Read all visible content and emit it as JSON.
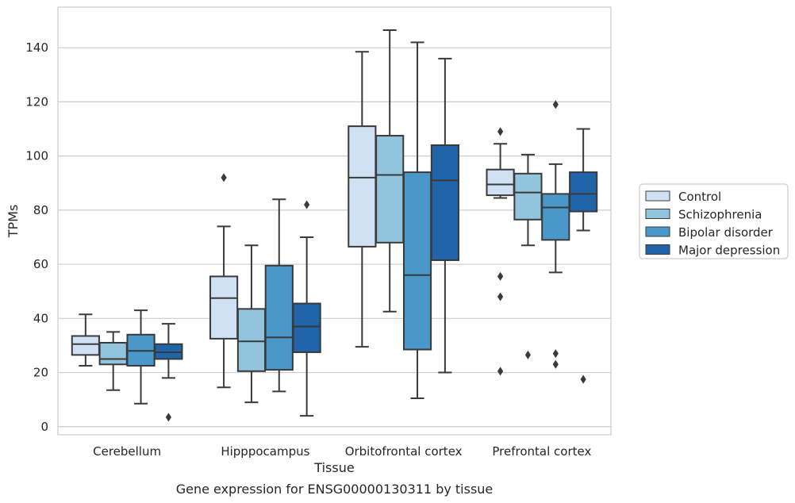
{
  "chart_data": {
    "type": "box",
    "xlabel": "Tissue",
    "ylabel": "TPMs",
    "caption": "Gene expression for ENSG00000130311 by tissue",
    "ylim": [
      -3,
      155
    ],
    "yticks": [
      0,
      20,
      40,
      60,
      80,
      100,
      120,
      140
    ],
    "grid": "horizontal",
    "legend_position": "right",
    "categories": [
      "Cerebellum",
      "Hipppocampus",
      "Orbitofrontal cortex",
      "Prefrontal cortex"
    ],
    "series": [
      {
        "name": "Control",
        "color": "#cfe1f2",
        "boxes": [
          {
            "whislo": 22.5,
            "q1": 26.5,
            "med": 30.5,
            "q3": 33.5,
            "whishi": 41.5,
            "fliers": []
          },
          {
            "whislo": 14.5,
            "q1": 32.5,
            "med": 47.5,
            "q3": 55.5,
            "whishi": 74.0,
            "fliers": [
              92.0
            ]
          },
          {
            "whislo": 29.5,
            "q1": 66.5,
            "med": 92.0,
            "q3": 111.0,
            "whishi": 138.5,
            "fliers": []
          },
          {
            "whislo": 84.5,
            "q1": 85.5,
            "med": 89.5,
            "q3": 95.0,
            "whishi": 104.5,
            "fliers": [
              109.0,
              55.5,
              48.0,
              20.5
            ]
          }
        ]
      },
      {
        "name": "Schizophrenia",
        "color": "#93c4de",
        "boxes": [
          {
            "whislo": 13.5,
            "q1": 23.0,
            "med": 25.0,
            "q3": 31.0,
            "whishi": 35.0,
            "fliers": []
          },
          {
            "whislo": 9.0,
            "q1": 20.5,
            "med": 31.5,
            "q3": 43.5,
            "whishi": 67.0,
            "fliers": []
          },
          {
            "whislo": 42.5,
            "q1": 68.0,
            "med": 93.0,
            "q3": 107.5,
            "whishi": 146.5,
            "fliers": []
          },
          {
            "whislo": 67.0,
            "q1": 76.5,
            "med": 86.5,
            "q3": 93.5,
            "whishi": 100.5,
            "fliers": [
              26.5
            ]
          }
        ]
      },
      {
        "name": "Bipolar disorder",
        "color": "#4a98c9",
        "boxes": [
          {
            "whislo": 8.5,
            "q1": 22.5,
            "med": 28.0,
            "q3": 34.0,
            "whishi": 43.0,
            "fliers": []
          },
          {
            "whislo": 13.0,
            "q1": 21.0,
            "med": 33.0,
            "q3": 59.5,
            "whishi": 84.0,
            "fliers": []
          },
          {
            "whislo": 10.5,
            "q1": 28.5,
            "med": 56.0,
            "q3": 94.0,
            "whishi": 142.0,
            "fliers": []
          },
          {
            "whislo": 57.0,
            "q1": 69.0,
            "med": 81.0,
            "q3": 86.0,
            "whishi": 97.0,
            "fliers": [
              119.0,
              27.0,
              23.0
            ]
          }
        ]
      },
      {
        "name": "Major depression",
        "color": "#2064aa",
        "boxes": [
          {
            "whislo": 18.0,
            "q1": 25.0,
            "med": 27.5,
            "q3": 30.5,
            "whishi": 38.0,
            "fliers": [
              3.5
            ]
          },
          {
            "whislo": 4.0,
            "q1": 27.5,
            "med": 37.0,
            "q3": 45.5,
            "whishi": 70.0,
            "fliers": [
              82.0
            ]
          },
          {
            "whislo": 20.0,
            "q1": 61.5,
            "med": 91.0,
            "q3": 104.0,
            "whishi": 136.0,
            "fliers": []
          },
          {
            "whislo": 72.5,
            "q1": 79.5,
            "med": 86.0,
            "q3": 94.0,
            "whishi": 110.0,
            "fliers": [
              17.5
            ]
          }
        ]
      }
    ]
  }
}
